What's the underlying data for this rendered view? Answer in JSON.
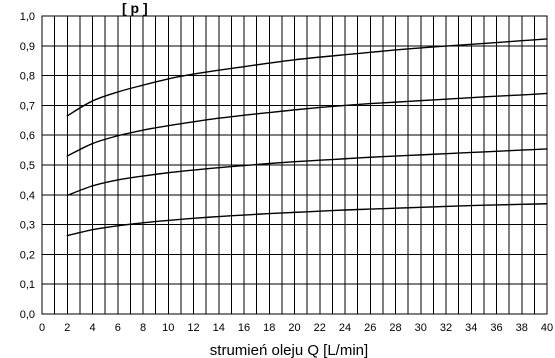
{
  "chart_data": {
    "type": "line",
    "title": "",
    "top_label": "[ p ]",
    "xlabel": "strumień oleju Q [L/min]",
    "ylabel": "",
    "xlim": [
      0,
      40
    ],
    "ylim": [
      0.0,
      1.0
    ],
    "grid": true,
    "x_ticks": [
      "0",
      "2",
      "4",
      "6",
      "8",
      "10",
      "12",
      "14",
      "16",
      "18",
      "20",
      "22",
      "24",
      "26",
      "28",
      "30",
      "32",
      "34",
      "36",
      "38",
      "40"
    ],
    "y_ticks": [
      "0,0",
      "0,1",
      "0,2",
      "0,3",
      "0,4",
      "0,5",
      "0,6",
      "0,7",
      "0,8",
      "0,9",
      "1,0"
    ],
    "x": [
      2,
      4,
      6,
      8,
      10,
      12,
      14,
      16,
      18,
      20,
      22,
      24,
      26,
      28,
      30,
      32,
      34,
      36,
      38,
      40
    ],
    "series": [
      {
        "values": [
          0.665,
          0.715,
          0.745,
          0.768,
          0.789,
          0.805,
          0.818,
          0.83,
          0.842,
          0.853,
          0.862,
          0.87,
          0.878,
          0.886,
          0.893,
          0.899,
          0.905,
          0.911,
          0.917,
          0.923
        ],
        "color": "#000000"
      },
      {
        "values": [
          0.53,
          0.572,
          0.598,
          0.617,
          0.632,
          0.645,
          0.657,
          0.667,
          0.676,
          0.685,
          0.693,
          0.7,
          0.706,
          0.711,
          0.716,
          0.721,
          0.726,
          0.731,
          0.735,
          0.74
        ],
        "color": "#000000"
      },
      {
        "values": [
          0.398,
          0.43,
          0.45,
          0.463,
          0.474,
          0.483,
          0.491,
          0.498,
          0.505,
          0.511,
          0.516,
          0.521,
          0.526,
          0.53,
          0.534,
          0.538,
          0.542,
          0.546,
          0.55,
          0.554
        ],
        "color": "#000000"
      },
      {
        "values": [
          0.263,
          0.283,
          0.296,
          0.306,
          0.314,
          0.321,
          0.327,
          0.332,
          0.337,
          0.341,
          0.345,
          0.349,
          0.352,
          0.355,
          0.358,
          0.361,
          0.364,
          0.366,
          0.368,
          0.37
        ],
        "color": "#000000"
      }
    ]
  }
}
